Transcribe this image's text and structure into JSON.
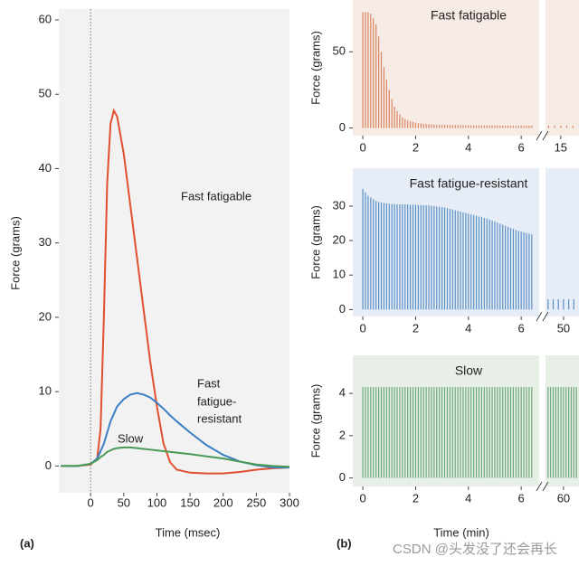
{
  "panel_labels": [
    "(a)",
    "(b)"
  ],
  "watermark": "CSDN @头发没了还会再长",
  "chart_data": [
    {
      "type": "line",
      "xlabel": "Time (msec)",
      "ylabel": "Force (grams)",
      "xlim": [
        -48,
        300
      ],
      "xticks": [
        0,
        50,
        100,
        150,
        200,
        250,
        300
      ],
      "ylim": [
        -3.6,
        60
      ],
      "yticks": [
        0,
        10,
        20,
        30,
        40,
        50,
        60
      ],
      "annotations": [
        "Fast fatigable",
        "Fast",
        "fatigue-",
        "resistant",
        "Slow"
      ],
      "x": [
        -45,
        -20,
        0,
        10,
        15,
        20,
        25,
        30,
        35,
        40,
        50,
        60,
        70,
        80,
        90,
        100,
        110,
        120,
        130,
        150,
        175,
        200,
        225,
        250,
        275,
        300
      ],
      "series": [
        {
          "name": "Fast fatigable",
          "color": "#e0502e",
          "values": [
            0,
            0,
            0.2,
            1,
            5,
            20,
            38,
            46,
            47.8,
            47,
            42,
            35,
            28,
            21,
            14,
            8,
            3,
            0.5,
            -0.5,
            -0.9,
            -1,
            -1,
            -0.8,
            -0.5,
            -0.3,
            -0.2
          ]
        },
        {
          "name": "Fast fatigue-resistant",
          "color": "#3b7fc4",
          "values": [
            0,
            0,
            0.3,
            1,
            2,
            3,
            4.5,
            6,
            7,
            8,
            9,
            9.6,
            9.8,
            9.6,
            9.2,
            8.5,
            7.7,
            6.8,
            6,
            4.5,
            2.8,
            1.5,
            0.6,
            0.1,
            -0.2,
            -0.2
          ]
        },
        {
          "name": "Slow",
          "color": "#4a9a55",
          "values": [
            0,
            0,
            0.3,
            0.8,
            1.2,
            1.5,
            1.9,
            2.1,
            2.3,
            2.4,
            2.5,
            2.5,
            2.4,
            2.3,
            2.2,
            2.1,
            2.0,
            1.9,
            1.8,
            1.6,
            1.3,
            1.0,
            0.6,
            0.2,
            0,
            -0.1
          ]
        }
      ]
    },
    {
      "type": "spike",
      "title": "Fast fatigable",
      "ylabel": "Force (grams)",
      "color": "#d9855e",
      "background": "#f7ebe6",
      "xlim": [
        -0.38,
        6.68
      ],
      "xticks": [
        0,
        2,
        4,
        6
      ],
      "ylim": [
        -5,
        84
      ],
      "yticks": [
        0,
        50
      ],
      "x": [
        0,
        0.1,
        0.2,
        0.3,
        0.4,
        0.5,
        0.6,
        0.7,
        0.8,
        0.9,
        1,
        1.1,
        1.2,
        1.3,
        1.4,
        1.5,
        1.6,
        1.7,
        1.8,
        1.9,
        2,
        2.1,
        2.2,
        2.3,
        2.4,
        2.5,
        2.6,
        2.7,
        2.8,
        2.9,
        3,
        3.1,
        3.2,
        3.3,
        3.4,
        3.5,
        3.6,
        3.7,
        3.8,
        3.9,
        4,
        4.1,
        4.2,
        4.3,
        4.4,
        4.5,
        4.6,
        4.7,
        4.8,
        4.9,
        5,
        5.1,
        5.2,
        5.3,
        5.4,
        5.5,
        5.6,
        5.7,
        5.8,
        5.9,
        6,
        6.1,
        6.2,
        6.3,
        6.4
      ],
      "values": [
        76,
        76,
        76,
        75,
        72,
        68,
        60,
        50,
        40,
        32,
        25,
        19,
        14,
        11,
        9,
        7,
        6,
        5,
        4.5,
        4,
        3.5,
        3.2,
        3,
        2.8,
        2.6,
        2.5,
        2.4,
        2.3,
        2.2,
        2.1,
        2,
        2,
        2,
        2,
        1.9,
        1.9,
        1.9,
        1.8,
        1.8,
        1.8,
        1.8,
        1.7,
        1.7,
        1.7,
        1.7,
        1.7,
        1.6,
        1.6,
        1.6,
        1.6,
        1.6,
        1.6,
        1.5,
        1.5,
        1.5,
        1.5,
        1.5,
        1.5,
        1.5,
        1.5,
        1.5,
        1.5,
        1.5,
        1.5,
        1.5
      ],
      "break": {
        "xlim": [
          14.5,
          15.6
        ],
        "xticks": [
          15
        ],
        "x": [
          14.6,
          14.8,
          15,
          15.2,
          15.4
        ],
        "values": [
          1.5,
          1.5,
          1.5,
          1.5,
          1.5
        ]
      }
    },
    {
      "type": "spike",
      "title": "Fast fatigue-resistant",
      "ylabel": "Force (grams)",
      "color": "#5b8fc7",
      "background": "#e6edf7",
      "xlim": [
        -0.38,
        6.68
      ],
      "xticks": [
        0,
        2,
        4,
        6
      ],
      "ylim": [
        -2,
        41
      ],
      "yticks": [
        0,
        10,
        20,
        30
      ],
      "x": [
        0,
        0.1,
        0.2,
        0.3,
        0.4,
        0.5,
        0.6,
        0.7,
        0.8,
        0.9,
        1,
        1.1,
        1.2,
        1.3,
        1.4,
        1.5,
        1.6,
        1.7,
        1.8,
        1.9,
        2,
        2.1,
        2.2,
        2.3,
        2.4,
        2.5,
        2.6,
        2.7,
        2.8,
        2.9,
        3,
        3.1,
        3.2,
        3.3,
        3.4,
        3.5,
        3.6,
        3.7,
        3.8,
        3.9,
        4,
        4.1,
        4.2,
        4.3,
        4.4,
        4.5,
        4.6,
        4.7,
        4.8,
        4.9,
        5,
        5.1,
        5.2,
        5.3,
        5.4,
        5.5,
        5.6,
        5.7,
        5.8,
        5.9,
        6,
        6.1,
        6.2,
        6.3,
        6.4
      ],
      "values": [
        35,
        34,
        33,
        32.5,
        32,
        31.5,
        31.2,
        31,
        30.9,
        30.8,
        30.7,
        30.6,
        30.6,
        30.5,
        30.5,
        30.5,
        30.5,
        30.5,
        30.4,
        30.4,
        30.4,
        30.3,
        30.3,
        30.3,
        30.2,
        30.2,
        30.1,
        30,
        29.9,
        29.8,
        29.7,
        29.6,
        29.4,
        29.2,
        29,
        28.8,
        28.6,
        28.4,
        28.2,
        28,
        27.8,
        27.6,
        27.4,
        27.2,
        27,
        26.8,
        26.6,
        26.4,
        26.1,
        25.8,
        25.5,
        25.2,
        24.9,
        24.6,
        24.3,
        24,
        23.7,
        23.4,
        23.1,
        22.8,
        22.6,
        22.4,
        22.2,
        22,
        21.8
      ],
      "break": {
        "xlim": [
          49.3,
          50.6
        ],
        "xticks": [
          50
        ],
        "x": [
          49.4,
          49.6,
          49.8,
          50,
          50.2,
          50.4
        ],
        "values": [
          3,
          3,
          3,
          3,
          3,
          3
        ]
      }
    },
    {
      "type": "spike",
      "title": "Slow",
      "xlabel": "Time (min)",
      "ylabel": "Force (grams)",
      "color": "#6aa878",
      "background": "#e7efe7",
      "xlim": [
        -0.38,
        6.68
      ],
      "xticks": [
        0,
        2,
        4,
        6
      ],
      "ylim": [
        -0.4,
        5.8
      ],
      "yticks": [
        0,
        2,
        4
      ],
      "x": [
        0,
        0.1,
        0.2,
        0.3,
        0.4,
        0.5,
        0.6,
        0.7,
        0.8,
        0.9,
        1,
        1.1,
        1.2,
        1.3,
        1.4,
        1.5,
        1.6,
        1.7,
        1.8,
        1.9,
        2,
        2.1,
        2.2,
        2.3,
        2.4,
        2.5,
        2.6,
        2.7,
        2.8,
        2.9,
        3,
        3.1,
        3.2,
        3.3,
        3.4,
        3.5,
        3.6,
        3.7,
        3.8,
        3.9,
        4,
        4.1,
        4.2,
        4.3,
        4.4,
        4.5,
        4.6,
        4.7,
        4.8,
        4.9,
        5,
        5.1,
        5.2,
        5.3,
        5.4,
        5.5,
        5.6,
        5.7,
        5.8,
        5.9,
        6,
        6.1,
        6.2,
        6.3,
        6.4
      ],
      "values": [
        4.3,
        4.3,
        4.3,
        4.3,
        4.3,
        4.3,
        4.3,
        4.3,
        4.3,
        4.3,
        4.3,
        4.3,
        4.3,
        4.3,
        4.3,
        4.3,
        4.3,
        4.3,
        4.3,
        4.3,
        4.3,
        4.3,
        4.3,
        4.3,
        4.3,
        4.3,
        4.3,
        4.3,
        4.3,
        4.3,
        4.3,
        4.3,
        4.3,
        4.3,
        4.3,
        4.3,
        4.3,
        4.3,
        4.3,
        4.3,
        4.3,
        4.3,
        4.3,
        4.3,
        4.3,
        4.3,
        4.3,
        4.3,
        4.3,
        4.3,
        4.3,
        4.3,
        4.3,
        4.3,
        4.3,
        4.3,
        4.3,
        4.3,
        4.3,
        4.3,
        4.3,
        4.3,
        4.3,
        4.3,
        4.3
      ],
      "break": {
        "xlim": [
          59.3,
          60.6
        ],
        "xticks": [
          60
        ],
        "x": [
          59.4,
          59.5,
          59.6,
          59.7,
          59.8,
          59.9,
          60,
          60.1,
          60.2,
          60.3,
          60.4,
          60.5
        ],
        "values": [
          4.3,
          4.3,
          4.3,
          4.3,
          4.3,
          4.3,
          4.3,
          4.3,
          4.3,
          4.3,
          4.3,
          4.3
        ]
      }
    }
  ]
}
